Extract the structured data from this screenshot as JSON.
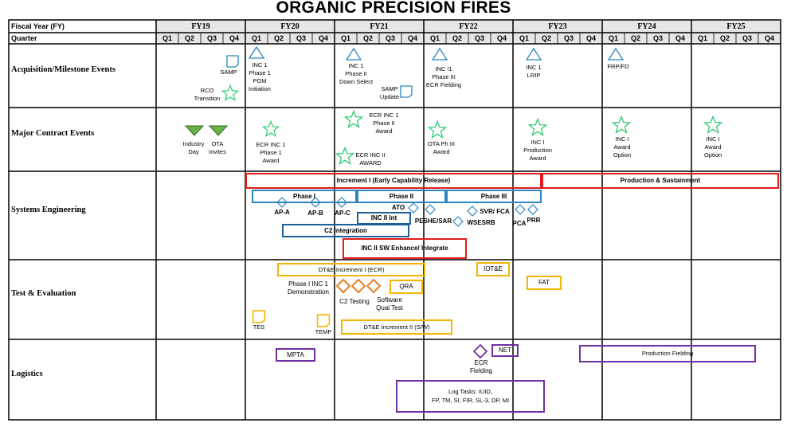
{
  "title": "ORGANIC PRECISION FIRES",
  "header": {
    "fiscal_year": "Fiscal Year (FY)",
    "quarter": "Quarter"
  },
  "years": [
    "FY19",
    "FY20",
    "FY21",
    "FY22",
    "FY23",
    "FY24",
    "FY25"
  ],
  "quarters": [
    "Q1",
    "Q2",
    "Q3",
    "Q4"
  ],
  "rows": [
    "Acquisition/Milestone Events",
    "Major Contract Events",
    "Systems Engineering",
    "Test & Evaluation",
    "Logistics"
  ],
  "acq": {
    "samp1": "SAMP",
    "rco": "RCO\nTransition",
    "inc1_pgm": "INC 1\nPhase 1\nPGM\nInitiation",
    "inc1_down": "INC 1\nPhase II\nDown Select",
    "samp2": "SAMP\nUpdate",
    "inc1_ecr": "INC !1\nPhase III\nECR Fielding",
    "inc1_lrip": "INC 1\nLRIP",
    "frp": "FRP/FD"
  },
  "contract": {
    "industry": "Industry\nDay",
    "ota": "OTA\nInvites",
    "ecr_p1": "ECR INC 1\nPhase 1\nAward",
    "ecr_p2": "ECR INC 1\nPhase II\nAward",
    "ecr_inc2": "ECR INC II\nAWARD",
    "ota_p3": "OTA Ph III\nAward",
    "prod_award": "INC I\nProduction\nAward",
    "opt1": "INC I\nAward\nOption",
    "opt2": "INC I\nAward\nOption"
  },
  "se": {
    "inc1_ecr": "Increment I (Early Capability Release)",
    "prod_sust": "Production & Sustainment",
    "phase1": "Phase I",
    "phase2": "Phase II",
    "phase3": "Phase III",
    "apa": "AP-A",
    "apb": "AP-B",
    "apc": "AP-C",
    "inc2int": "INC II Int",
    "ato": "ATO",
    "peshe": "PESHE/SAR",
    "svr": "SVR/ FCA",
    "wsesrb": "WSESRB",
    "pca": "PCA",
    "prr": "PRR",
    "c2int": "C2 Integration",
    "inc2sw": "INC II SW Enhance/ Integrate"
  },
  "te": {
    "dte1": "DT&E Increment I (ECR)",
    "iote": "IOT&E",
    "fat": "FAT",
    "demo": "Phase I INC 1\nDemonstration",
    "qra": "QRA",
    "c2test": "C2 Testing",
    "swqual": "Software\nQual Test",
    "tes": "TES",
    "temp": "TEMP",
    "dte2": "DT&E  Increment II (S/W)"
  },
  "log": {
    "mpta": "MPTA",
    "net": "NET",
    "ecr_field": "ECR\nFielding",
    "prod_field": "Production Fielding",
    "tasks": "Log Tasks: IUID,\nFP, TM, SI, FIR, SL-3, DP, MI"
  },
  "colors": {
    "green": "#2ecc71",
    "blue": "#2e86c1",
    "red": "#e31b1b",
    "gold": "#f5b400",
    "orange": "#e67e22",
    "purple": "#7030a0",
    "grey_fill": "#e6e6e6"
  }
}
